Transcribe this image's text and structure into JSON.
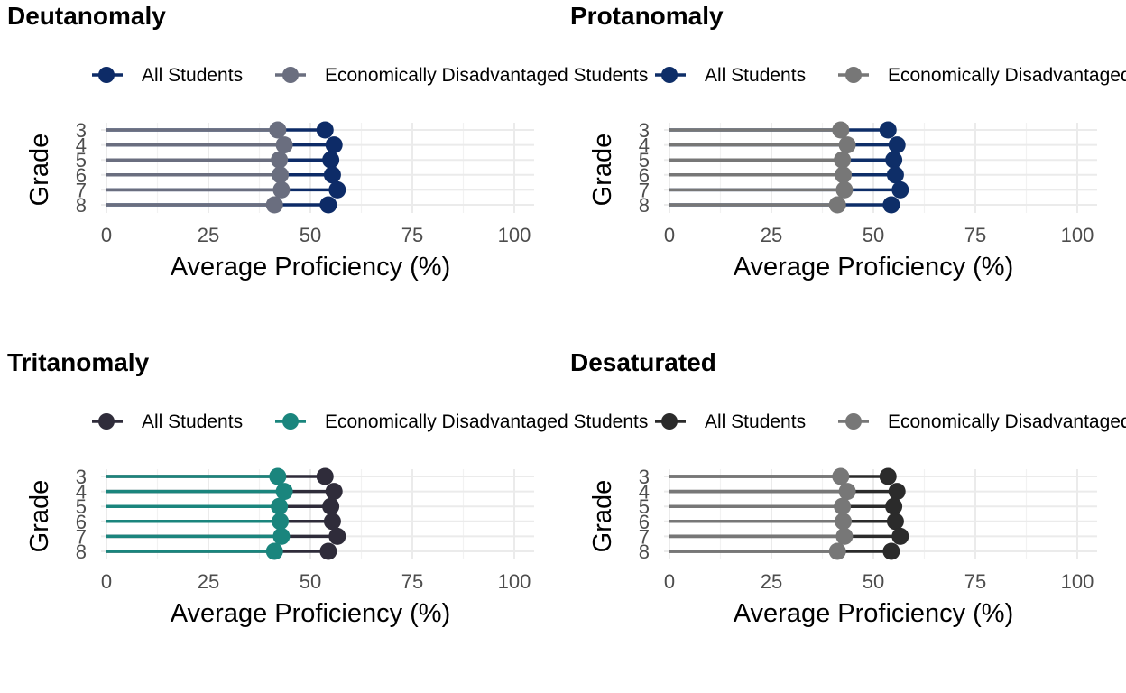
{
  "legend_labels": [
    "All Students",
    "Economically Disadvantaged Students"
  ],
  "chart_data": [
    {
      "type": "dumbbell",
      "title": "Deutanomaly",
      "xlabel": "Average Proficiency (%)",
      "ylabel": "Grade",
      "xlim": [
        0,
        100
      ],
      "x_ticks": [
        "0",
        "25",
        "50",
        "75",
        "100"
      ],
      "categories": [
        "3",
        "4",
        "5",
        "6",
        "7",
        "8"
      ],
      "series": [
        {
          "name": "All Students",
          "color": "#0d2b67",
          "values": [
            53.6,
            55.8,
            55.0,
            55.4,
            56.6,
            54.4
          ]
        },
        {
          "name": "Economically Disadvantaged Students",
          "color": "#6a6e7f",
          "values": [
            42.0,
            43.6,
            42.4,
            42.6,
            42.9,
            41.2
          ]
        }
      ],
      "legend_position": "top",
      "grid": true
    },
    {
      "type": "dumbbell",
      "title": "Protanomaly",
      "xlabel": "Average Proficiency (%)",
      "ylabel": "Grade",
      "xlim": [
        0,
        100
      ],
      "x_ticks": [
        "0",
        "25",
        "50",
        "75",
        "100"
      ],
      "categories": [
        "3",
        "4",
        "5",
        "6",
        "7",
        "8"
      ],
      "series": [
        {
          "name": "All Students",
          "color": "#0e2e68",
          "values": [
            53.6,
            55.8,
            55.0,
            55.4,
            56.6,
            54.4
          ]
        },
        {
          "name": "Economically Disadvantaged Students",
          "color": "#777777",
          "values": [
            42.0,
            43.6,
            42.4,
            42.6,
            42.9,
            41.2
          ]
        }
      ],
      "legend_position": "top",
      "grid": true
    },
    {
      "type": "dumbbell",
      "title": "Tritanomaly",
      "xlabel": "Average Proficiency (%)",
      "ylabel": "Grade",
      "xlim": [
        0,
        100
      ],
      "x_ticks": [
        "0",
        "25",
        "50",
        "75",
        "100"
      ],
      "categories": [
        "3",
        "4",
        "5",
        "6",
        "7",
        "8"
      ],
      "series": [
        {
          "name": "All Students",
          "color": "#2f2c3a",
          "values": [
            53.6,
            55.8,
            55.0,
            55.4,
            56.6,
            54.4
          ]
        },
        {
          "name": "Economically Disadvantaged Students",
          "color": "#1a857d",
          "values": [
            42.0,
            43.6,
            42.4,
            42.6,
            42.9,
            41.2
          ]
        }
      ],
      "legend_position": "top",
      "grid": true
    },
    {
      "type": "dumbbell",
      "title": "Desaturated",
      "xlabel": "Average Proficiency (%)",
      "ylabel": "Grade",
      "xlim": [
        0,
        100
      ],
      "x_ticks": [
        "0",
        "25",
        "50",
        "75",
        "100"
      ],
      "categories": [
        "3",
        "4",
        "5",
        "6",
        "7",
        "8"
      ],
      "series": [
        {
          "name": "All Students",
          "color": "#2b2b2b",
          "values": [
            53.6,
            55.8,
            55.0,
            55.4,
            56.6,
            54.4
          ]
        },
        {
          "name": "Economically Disadvantaged Students",
          "color": "#777777",
          "values": [
            42.0,
            43.6,
            42.4,
            42.6,
            42.9,
            41.2
          ]
        }
      ],
      "legend_position": "top",
      "grid": true
    }
  ]
}
